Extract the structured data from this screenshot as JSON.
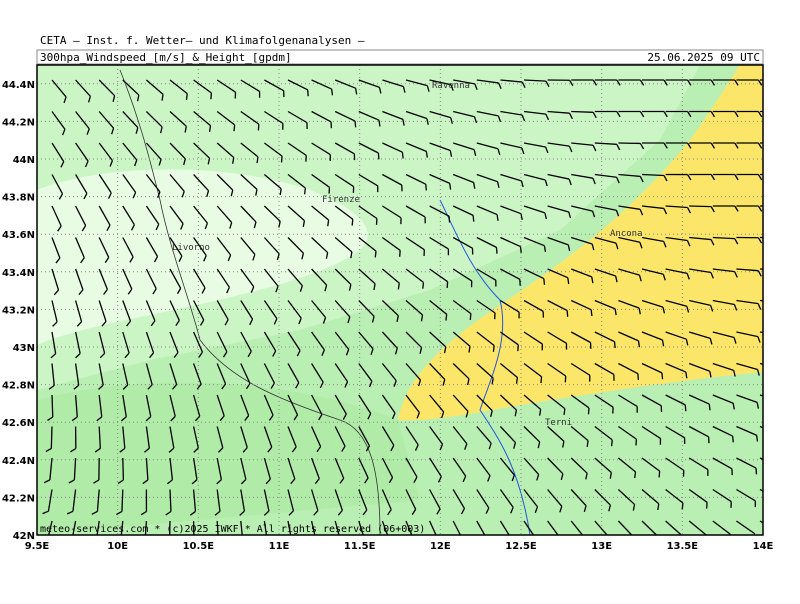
{
  "header": {
    "line1": "CETA — Inst. f. Wetter— und Klimafolgenanalysen —",
    "title": "300hpa_Windspeed_[m/s]_&_Height_[gpdm]",
    "date": "25.06.2025 09 UTC"
  },
  "footer": {
    "credit": "meteo-services.com * (c)2025 IWKF * All rights reserved (06+003)"
  },
  "cities": [
    "Ravenna",
    "Firenze",
    "Livorno",
    "Ancona",
    "Terni"
  ],
  "lon_ticks": [
    {
      "value": 9.5,
      "label": "9.5E"
    },
    {
      "value": 10,
      "label": "10E"
    },
    {
      "value": 10.5,
      "label": "10.5E"
    },
    {
      "value": 11,
      "label": "11E"
    },
    {
      "value": 11.5,
      "label": "11.5E"
    },
    {
      "value": 12,
      "label": "12E"
    },
    {
      "value": 12.5,
      "label": "12.5E"
    },
    {
      "value": 13,
      "label": "13E"
    },
    {
      "value": 13.5,
      "label": "13.5E"
    },
    {
      "value": 14,
      "label": "14E"
    }
  ],
  "lat_ticks": [
    {
      "value": 42,
      "label": "42N"
    },
    {
      "value": 42.2,
      "label": "42.2N"
    },
    {
      "value": 42.4,
      "label": "42.4N"
    },
    {
      "value": 42.6,
      "label": "42.6N"
    },
    {
      "value": 42.8,
      "label": "42.8N"
    },
    {
      "value": 43,
      "label": "43N"
    },
    {
      "value": 43.2,
      "label": "43.2N"
    },
    {
      "value": 43.4,
      "label": "43.4N"
    },
    {
      "value": 43.6,
      "label": "43.6N"
    },
    {
      "value": 43.8,
      "label": "43.8N"
    },
    {
      "value": 44,
      "label": "44N"
    },
    {
      "value": 44.2,
      "label": "44.2N"
    },
    {
      "value": 44.4,
      "label": "44.4N"
    }
  ]
}
